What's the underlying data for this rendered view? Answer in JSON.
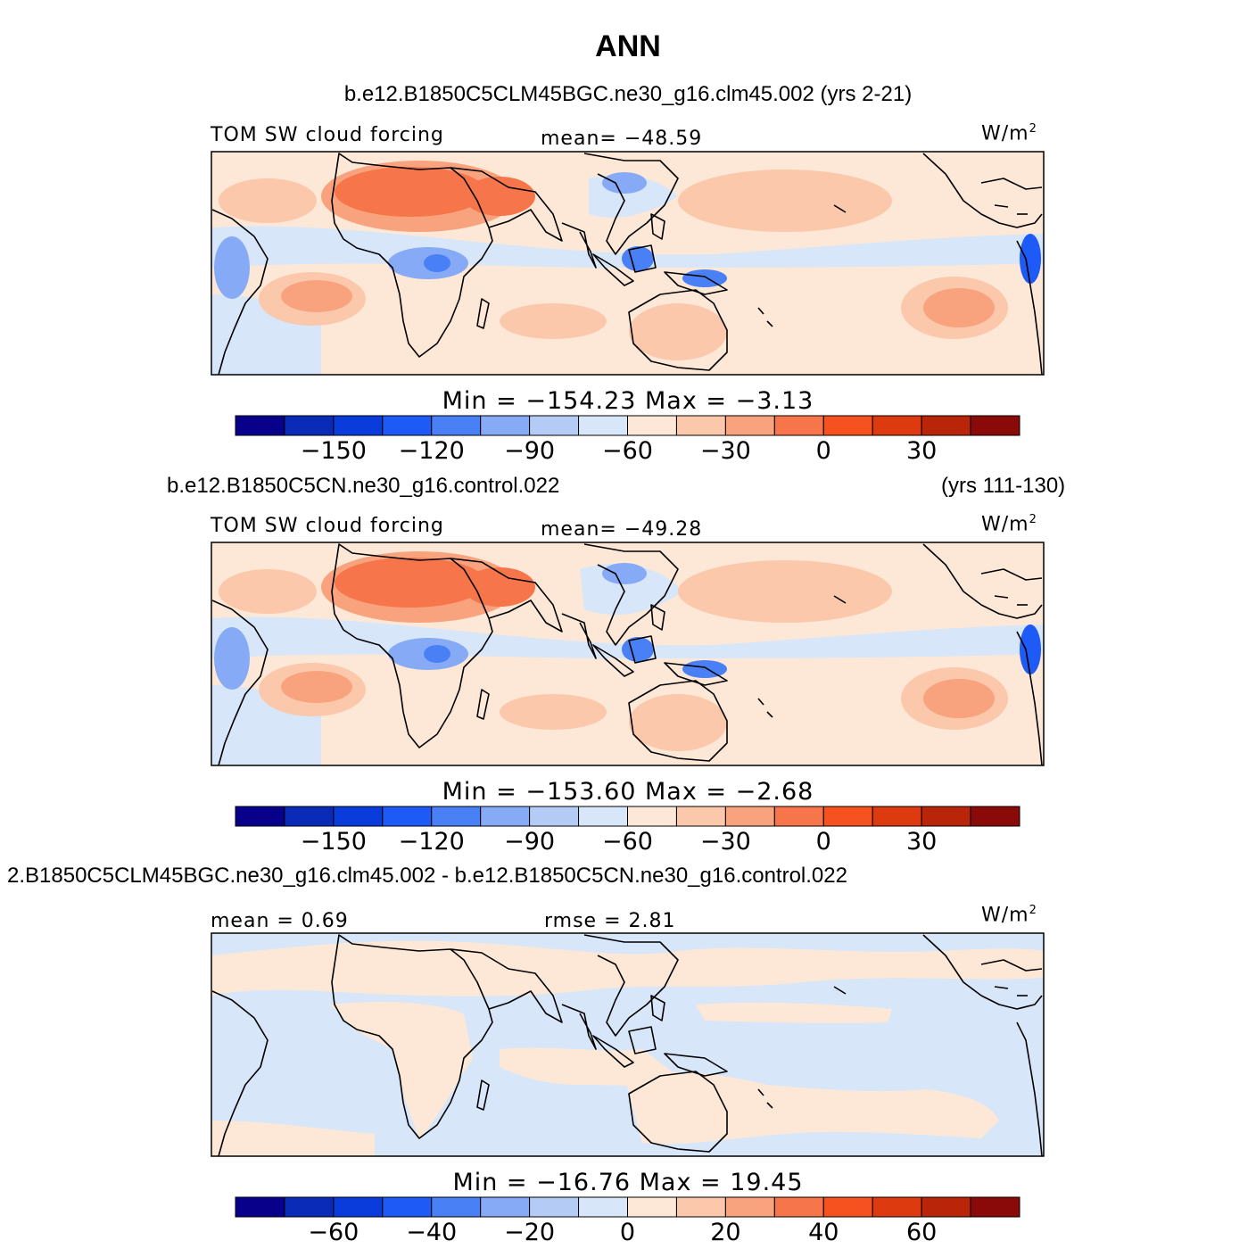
{
  "title": "ANN",
  "colors": {
    "scale": [
      "#08008a",
      "#0a2ab8",
      "#0a3cdc",
      "#1e5af5",
      "#4a80f5",
      "#86aaf5",
      "#b4cbf5",
      "#d7e6f8",
      "#fde8d7",
      "#fbc8ab",
      "#f9a37e",
      "#f7754a",
      "#f6521f",
      "#dd3a0f",
      "#b82508",
      "#8a0a0a"
    ],
    "ocean_light": "#fde8d7",
    "ocean_dark": "#d7e6f8",
    "coast": "#000000"
  },
  "panels": [
    {
      "id": "case1",
      "case_name": "b.e12.B1850C5CLM45BGC.ne30_g16.clm45.002 (yrs 2-21)",
      "years": "",
      "left_label": "TOM SW cloud forcing",
      "center_label": "mean=  −48.59",
      "units": "W/m",
      "units_sup": "2",
      "minmax": "Min  =  −154.23  Max  =    −3.13",
      "colorbar_ticks": [
        "−150",
        "−120",
        "−90",
        "−60",
        "−30",
        "0",
        "30"
      ]
    },
    {
      "id": "case2",
      "case_name": "b.e12.B1850C5CN.ne30_g16.control.022",
      "years": "(yrs 111-130)",
      "left_label": "TOM SW cloud forcing",
      "center_label": "mean=  −49.28",
      "units": "W/m",
      "units_sup": "2",
      "minmax": "Min  =  −153.60  Max  =    −2.68",
      "colorbar_ticks": [
        "−150",
        "−120",
        "−90",
        "−60",
        "−30",
        "0",
        "30"
      ]
    },
    {
      "id": "diff",
      "case_name": "2.B1850C5CLM45BGC.ne30_g16.clm45.002 - b.e12.B1850C5CN.ne30_g16.control.022",
      "years": "",
      "left_label": "mean  =     0.69",
      "center_label": "rmse  =     2.81",
      "units": "W/m",
      "units_sup": "2",
      "minmax": "Min  =  −16.76  Max  =    19.45",
      "colorbar_ticks": [
        "−60",
        "−40",
        "−20",
        "0",
        "20",
        "40",
        "60"
      ]
    }
  ]
}
